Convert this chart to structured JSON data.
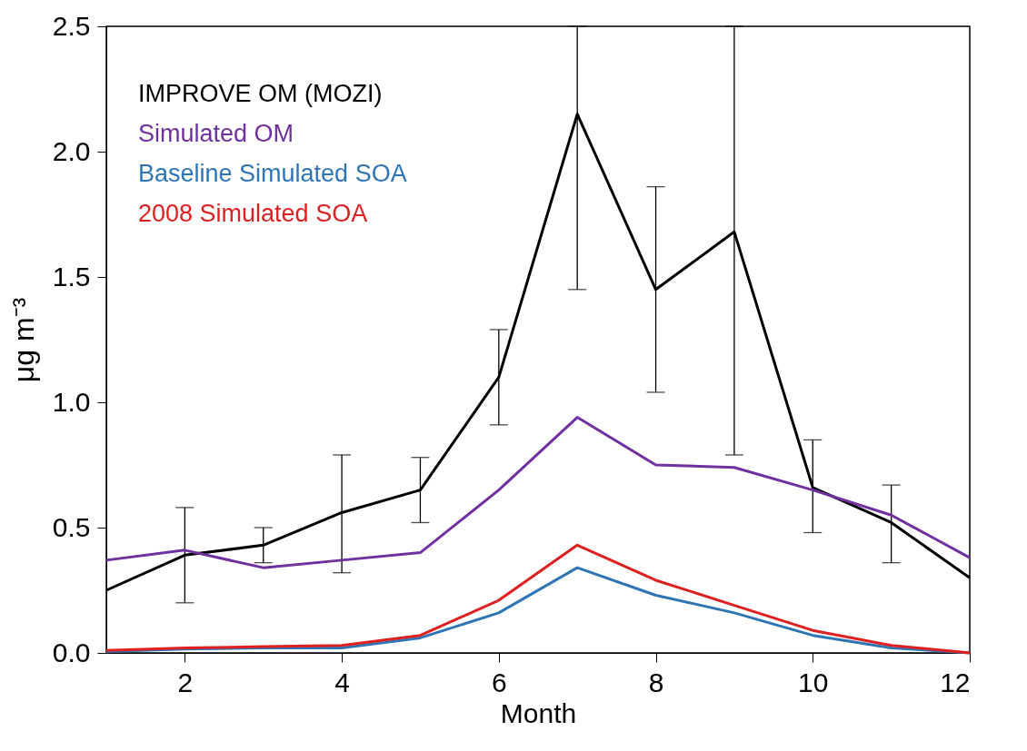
{
  "chart_data": {
    "type": "line",
    "xlabel": "Month",
    "ylabel": "μg m⁻³",
    "x": [
      1,
      2,
      3,
      4,
      5,
      6,
      7,
      8,
      9,
      10,
      11,
      12
    ],
    "series": [
      {
        "name": "IMPROVE OM (MOZI)",
        "color": "#000000",
        "values": [
          0.25,
          0.39,
          0.43,
          0.56,
          0.65,
          1.1,
          2.15,
          1.45,
          1.68,
          0.66,
          0.52,
          0.3
        ],
        "errors": [
          null,
          [
            0.2,
            0.58
          ],
          [
            0.36,
            0.5
          ],
          [
            0.32,
            0.79
          ],
          [
            0.52,
            0.78
          ],
          [
            0.91,
            1.29
          ],
          [
            1.45,
            2.5
          ],
          [
            1.04,
            1.86
          ],
          [
            0.79,
            2.5
          ],
          [
            0.48,
            0.85
          ],
          [
            0.36,
            0.67
          ],
          null
        ]
      },
      {
        "name": "Simulated OM",
        "color": "#7030a0",
        "values": [
          0.37,
          0.41,
          0.34,
          0.37,
          0.4,
          0.65,
          0.94,
          0.75,
          0.74,
          0.65,
          0.55,
          0.38
        ]
      },
      {
        "name": "Baseline Simulated SOA",
        "color": "#2e75b6",
        "values": [
          0.005,
          0.015,
          0.02,
          0.02,
          0.06,
          0.16,
          0.34,
          0.23,
          0.16,
          0.07,
          0.02,
          0.0
        ]
      },
      {
        "name": "2008 Simulated SOA",
        "color": "#e02020",
        "values": [
          0.01,
          0.02,
          0.025,
          0.03,
          0.07,
          0.21,
          0.43,
          0.29,
          0.19,
          0.09,
          0.03,
          0.0
        ]
      }
    ],
    "xlim": [
      1,
      12
    ],
    "xticks": [
      2,
      4,
      6,
      8,
      10,
      12
    ],
    "ylim": [
      0,
      2.5
    ],
    "yticks": [
      {
        "value": 0,
        "label": "0.0"
      },
      {
        "value": 0.5,
        "label": "0.5"
      },
      {
        "value": 1.0,
        "label": "1.0"
      },
      {
        "value": 1.5,
        "label": "1.5"
      },
      {
        "value": 2.0,
        "label": "2.0"
      },
      {
        "value": 2.5,
        "label": "2.5"
      }
    ],
    "legend": "top left",
    "grid": false,
    "marker": "none",
    "line_style": "solid"
  }
}
